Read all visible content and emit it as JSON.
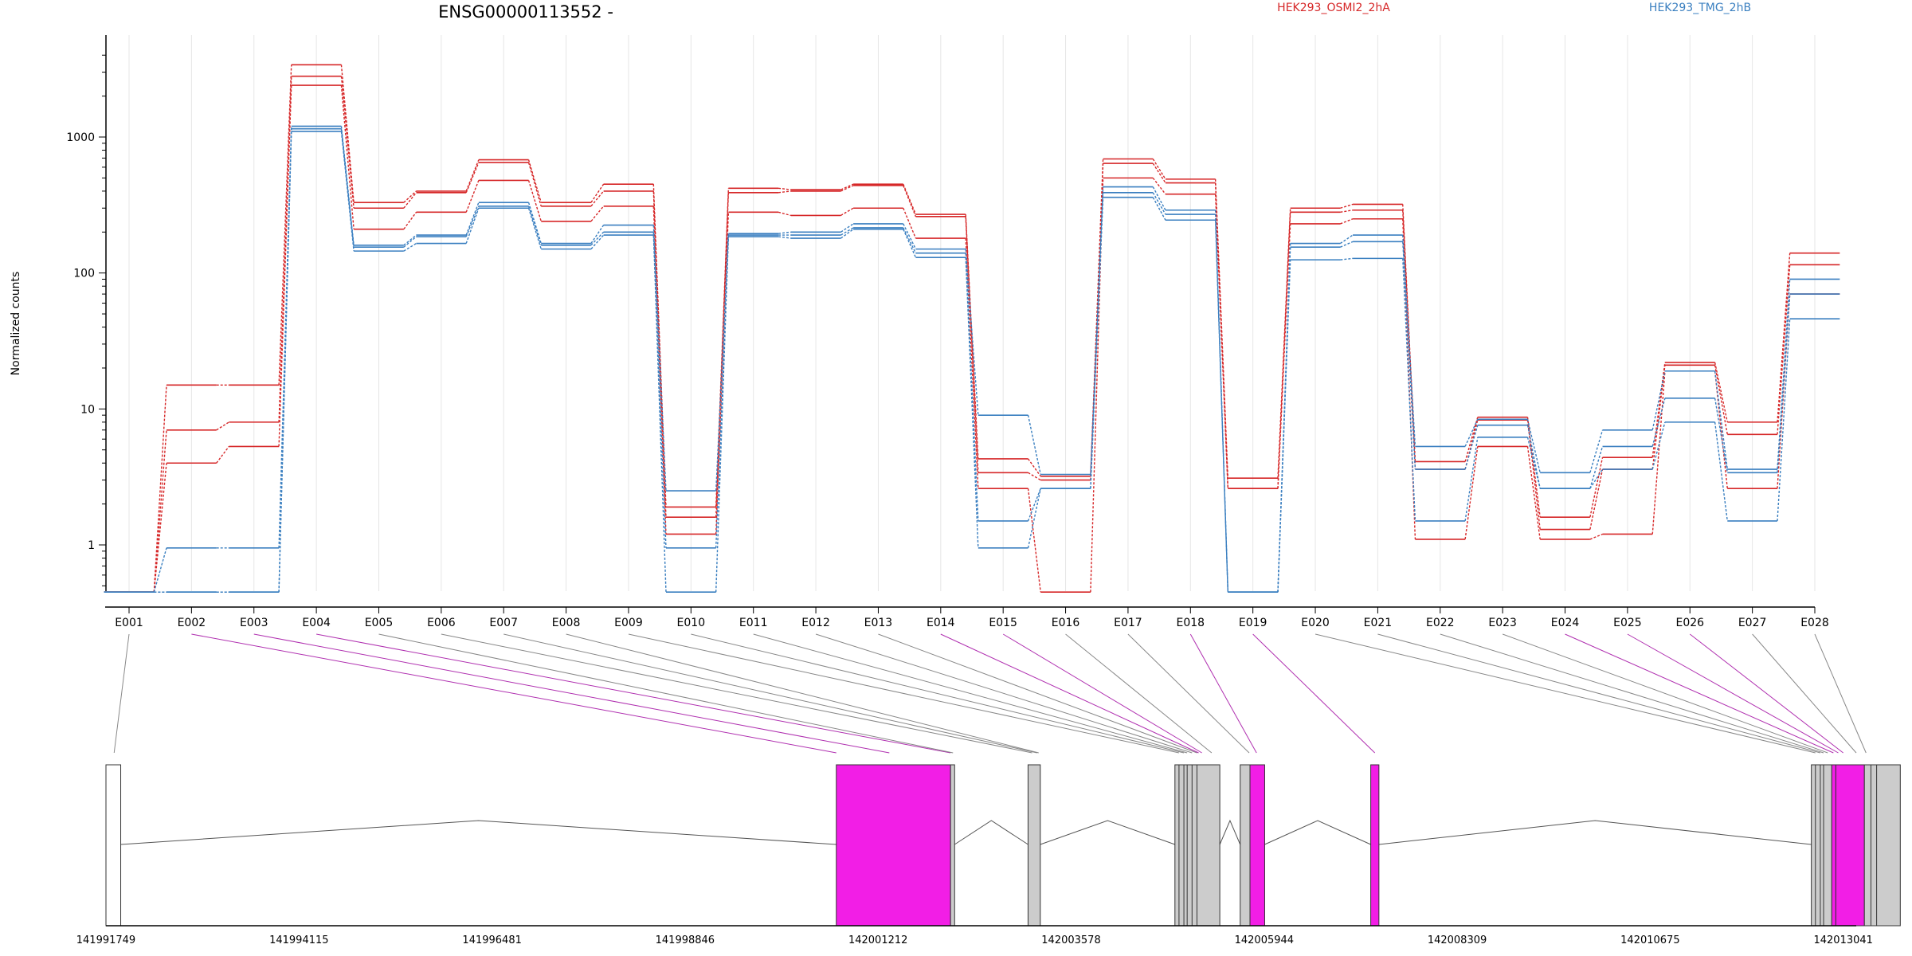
{
  "chart_data": {
    "type": "line",
    "title": "ENSG00000113552 -",
    "ylabel": "Normalized counts",
    "xlabel": "",
    "yscale": "log",
    "yticks": [
      1,
      10,
      100,
      1000
    ],
    "ylim": [
      0.3,
      5000
    ],
    "grid": "vertical",
    "legend_placement": "top-right",
    "groups": [
      {
        "name": "HEK293_OSMI2_2hA",
        "color": "#d62728"
      },
      {
        "name": "HEK293_TMG_2hB",
        "color": "#3a7fc0"
      }
    ],
    "categories": [
      "E001",
      "E002",
      "E003",
      "E004",
      "E005",
      "E006",
      "E007",
      "E008",
      "E009",
      "E010",
      "E011",
      "E012",
      "E013",
      "E014",
      "E015",
      "E016",
      "E017",
      "E018",
      "E019",
      "E020",
      "E021",
      "E022",
      "E023",
      "E024",
      "E025",
      "E026",
      "E027",
      "E028"
    ],
    "series": [
      {
        "group": 0,
        "values": [
          0.45,
          15,
          15,
          3400,
          330,
          400,
          680,
          330,
          450,
          1.9,
          420,
          410,
          450,
          270,
          4.3,
          3.2,
          690,
          490,
          3.1,
          300,
          320,
          4.1,
          8.7,
          1.6,
          4.4,
          22,
          8,
          140
        ]
      },
      {
        "group": 0,
        "values": [
          0.45,
          7,
          8,
          2800,
          300,
          390,
          650,
          310,
          400,
          1.6,
          390,
          400,
          440,
          260,
          3.4,
          3.0,
          640,
          460,
          2.6,
          280,
          290,
          3.6,
          8.3,
          1.3,
          3.6,
          21,
          6.5,
          115
        ]
      },
      {
        "group": 0,
        "values": [
          0.45,
          4,
          5.3,
          2400,
          210,
          280,
          480,
          240,
          310,
          1.2,
          280,
          265,
          300,
          180,
          2.6,
          0.45,
          500,
          380,
          2.6,
          230,
          250,
          1.1,
          5.3,
          1.1,
          1.2,
          19,
          2.6,
          70
        ]
      },
      {
        "group": 1,
        "values": [
          0.45,
          0.95,
          0.95,
          1200,
          160,
          190,
          330,
          165,
          225,
          2.5,
          195,
          200,
          230,
          150,
          9,
          3.3,
          430,
          290,
          0.45,
          165,
          190,
          5.3,
          8.4,
          3.4,
          7,
          19,
          3.6,
          90
        ]
      },
      {
        "group": 1,
        "values": [
          0.45,
          0.45,
          0.45,
          1150,
          155,
          185,
          310,
          160,
          200,
          0.95,
          190,
          190,
          215,
          140,
          1.5,
          2.6,
          390,
          270,
          0.45,
          155,
          170,
          3.6,
          7.6,
          2.6,
          5.3,
          12,
          3.4,
          70
        ]
      },
      {
        "group": 1,
        "values": [
          0.45,
          0.45,
          0.45,
          1100,
          145,
          165,
          300,
          150,
          190,
          0.45,
          185,
          180,
          210,
          130,
          0.95,
          2.6,
          360,
          245,
          0.45,
          125,
          128,
          1.5,
          6.2,
          2.6,
          3.6,
          8,
          1.5,
          46
        ]
      }
    ],
    "gene_model": {
      "axis_ticks": [
        141991749,
        141994115,
        141996481,
        141998846,
        142001212,
        142003578,
        142005944,
        142008309,
        142010675,
        142013041
      ],
      "range": [
        141991749,
        142013200
      ],
      "exons": [
        {
          "start": 141991749,
          "end": 141991930,
          "fill": "#ffffff"
        },
        {
          "start": 142000700,
          "end": 142002100,
          "fill": "#f21ee6"
        },
        {
          "start": 142002100,
          "end": 142002150,
          "fill": "#cccccc"
        },
        {
          "start": 142003050,
          "end": 142003200,
          "fill": "#cccccc"
        },
        {
          "start": 142004850,
          "end": 142005400,
          "fill": "#cccccc"
        },
        {
          "start": 142005650,
          "end": 142005770,
          "fill": "#cccccc"
        },
        {
          "start": 142005770,
          "end": 142005950,
          "fill": "#f21ee6"
        },
        {
          "start": 142007250,
          "end": 142007350,
          "fill": "#f21ee6"
        },
        {
          "start": 142012650,
          "end": 142012900,
          "fill": "#cccccc"
        },
        {
          "start": 142012900,
          "end": 142012950,
          "fill": "#f21ee6"
        },
        {
          "start": 142012950,
          "end": 142013300,
          "fill": "#f21ee6"
        },
        {
          "start": 142013300,
          "end": 142013740,
          "fill": "#cccccc"
        }
      ],
      "introns": [
        [
          141991930,
          142000700
        ],
        [
          142002150,
          142003050
        ],
        [
          142003200,
          142004850
        ],
        [
          142005400,
          142005650
        ],
        [
          142005950,
          142007250
        ],
        [
          142007350,
          142012650
        ]
      ],
      "bin_links": [
        {
          "bin": "E001",
          "pos": 141991849,
          "highlight": false
        },
        {
          "bin": "E002",
          "pos": 142000700,
          "highlight": true
        },
        {
          "bin": "E003",
          "pos": 142001350,
          "highlight": true
        },
        {
          "bin": "E004",
          "pos": 142002100,
          "highlight": true
        },
        {
          "bin": "E005",
          "pos": 142002130,
          "highlight": false
        },
        {
          "bin": "E006",
          "pos": 142003100,
          "highlight": false
        },
        {
          "bin": "E007",
          "pos": 142003160,
          "highlight": false
        },
        {
          "bin": "E008",
          "pos": 142003180,
          "highlight": false
        },
        {
          "bin": "E009",
          "pos": 142004900,
          "highlight": false
        },
        {
          "bin": "E010",
          "pos": 142004960,
          "highlight": false
        },
        {
          "bin": "E011",
          "pos": 142005000,
          "highlight": false
        },
        {
          "bin": "E012",
          "pos": 142005060,
          "highlight": false
        },
        {
          "bin": "E013",
          "pos": 142005120,
          "highlight": false
        },
        {
          "bin": "E014",
          "pos": 142005140,
          "highlight": true
        },
        {
          "bin": "E015",
          "pos": 142005180,
          "highlight": true
        },
        {
          "bin": "E016",
          "pos": 142005300,
          "highlight": false
        },
        {
          "bin": "E017",
          "pos": 142005760,
          "highlight": false
        },
        {
          "bin": "E018",
          "pos": 142005850,
          "highlight": true
        },
        {
          "bin": "E019",
          "pos": 142007300,
          "highlight": true
        },
        {
          "bin": "E020",
          "pos": 142012700,
          "highlight": false
        },
        {
          "bin": "E021",
          "pos": 142012760,
          "highlight": false
        },
        {
          "bin": "E022",
          "pos": 142012800,
          "highlight": false
        },
        {
          "bin": "E023",
          "pos": 142012850,
          "highlight": false
        },
        {
          "bin": "E024",
          "pos": 142012920,
          "highlight": true
        },
        {
          "bin": "E025",
          "pos": 142012980,
          "highlight": true
        },
        {
          "bin": "E026",
          "pos": 142013040,
          "highlight": true
        },
        {
          "bin": "E027",
          "pos": 142013200,
          "highlight": false
        },
        {
          "bin": "E028",
          "pos": 142013320,
          "highlight": false
        }
      ]
    }
  }
}
